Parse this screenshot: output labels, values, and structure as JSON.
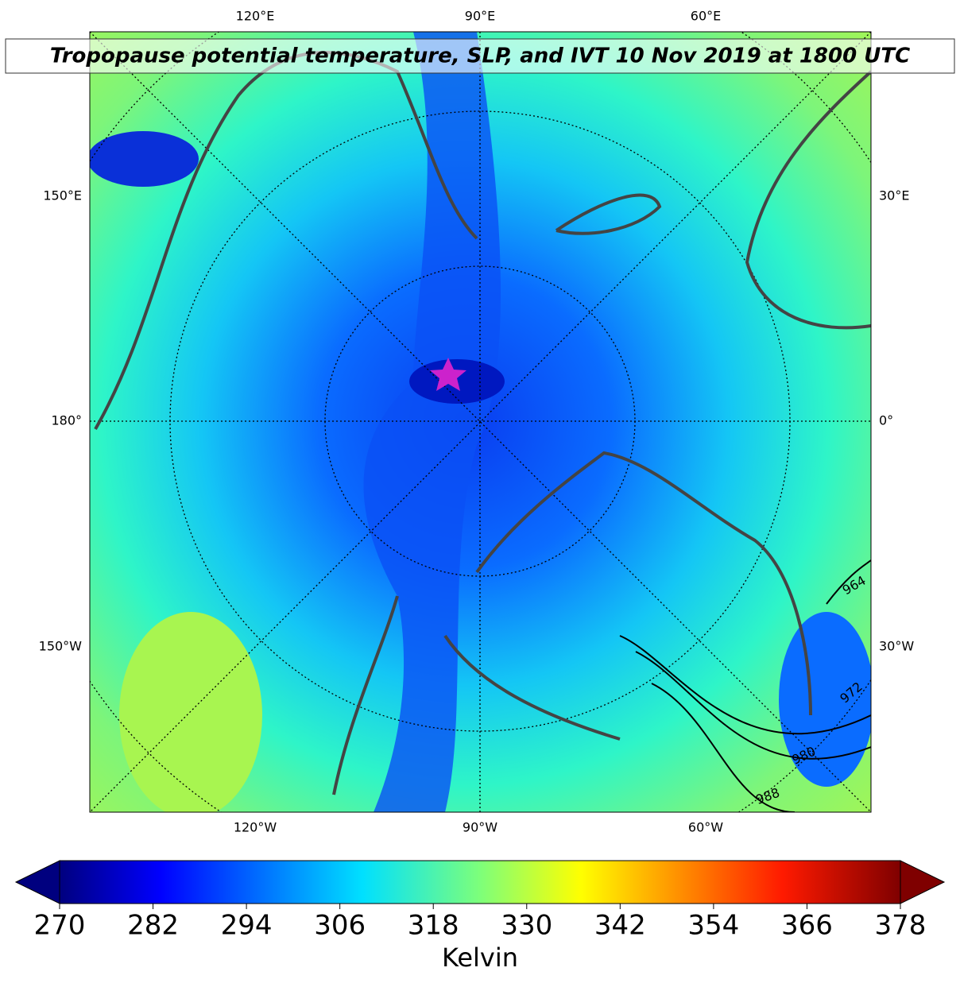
{
  "title": "Tropopause potential temperature, SLP, and IVT 10 Nov 2019 at 1800 UTC",
  "lon_labels": {
    "top": [
      "120°E",
      "90°E",
      "60°E"
    ],
    "left": [
      "150°E",
      "180°",
      "150°W"
    ],
    "right": [
      "30°E",
      "0°",
      "30°W"
    ],
    "bottom": [
      "120°W",
      "90°W",
      "60°W"
    ]
  },
  "contour_labels": [
    "964",
    "972",
    "980",
    "988"
  ],
  "colorbar": {
    "lim": [
      270,
      378
    ],
    "ticks": [
      270,
      282,
      294,
      306,
      318,
      330,
      342,
      354,
      366,
      378
    ],
    "label": "Kelvin"
  }
}
